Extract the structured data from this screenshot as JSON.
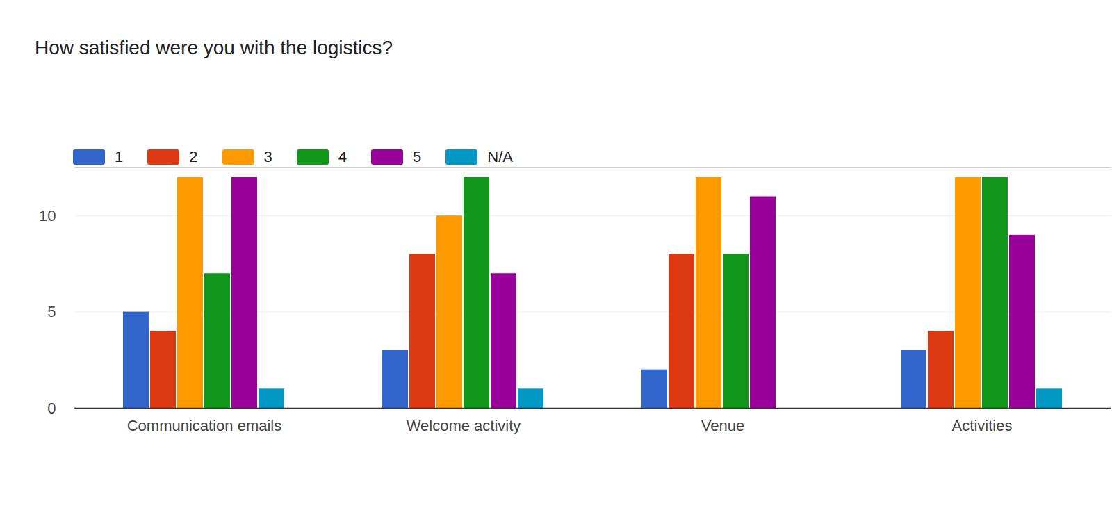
{
  "chart_data": {
    "type": "bar",
    "title": "How satisfied were you with the logistics?",
    "categories": [
      "Communication emails",
      "Welcome activity",
      "Venue",
      "Activities"
    ],
    "series": [
      {
        "name": "1",
        "color": "#3366cc",
        "values": [
          5,
          3,
          2,
          3
        ]
      },
      {
        "name": "2",
        "color": "#dc3912",
        "values": [
          4,
          8,
          8,
          4
        ]
      },
      {
        "name": "3",
        "color": "#ff9900",
        "values": [
          12,
          10,
          12,
          12
        ]
      },
      {
        "name": "4",
        "color": "#109618",
        "values": [
          7,
          12,
          8,
          12
        ]
      },
      {
        "name": "5",
        "color": "#990099",
        "values": [
          12,
          7,
          11,
          9
        ]
      },
      {
        "name": "N/A",
        "color": "#0099c6",
        "values": [
          1,
          1,
          0,
          1
        ]
      }
    ],
    "ylim": [
      0,
      12.5
    ],
    "yticks": [
      0,
      5,
      10
    ],
    "grid": true,
    "legend": "top-left"
  }
}
